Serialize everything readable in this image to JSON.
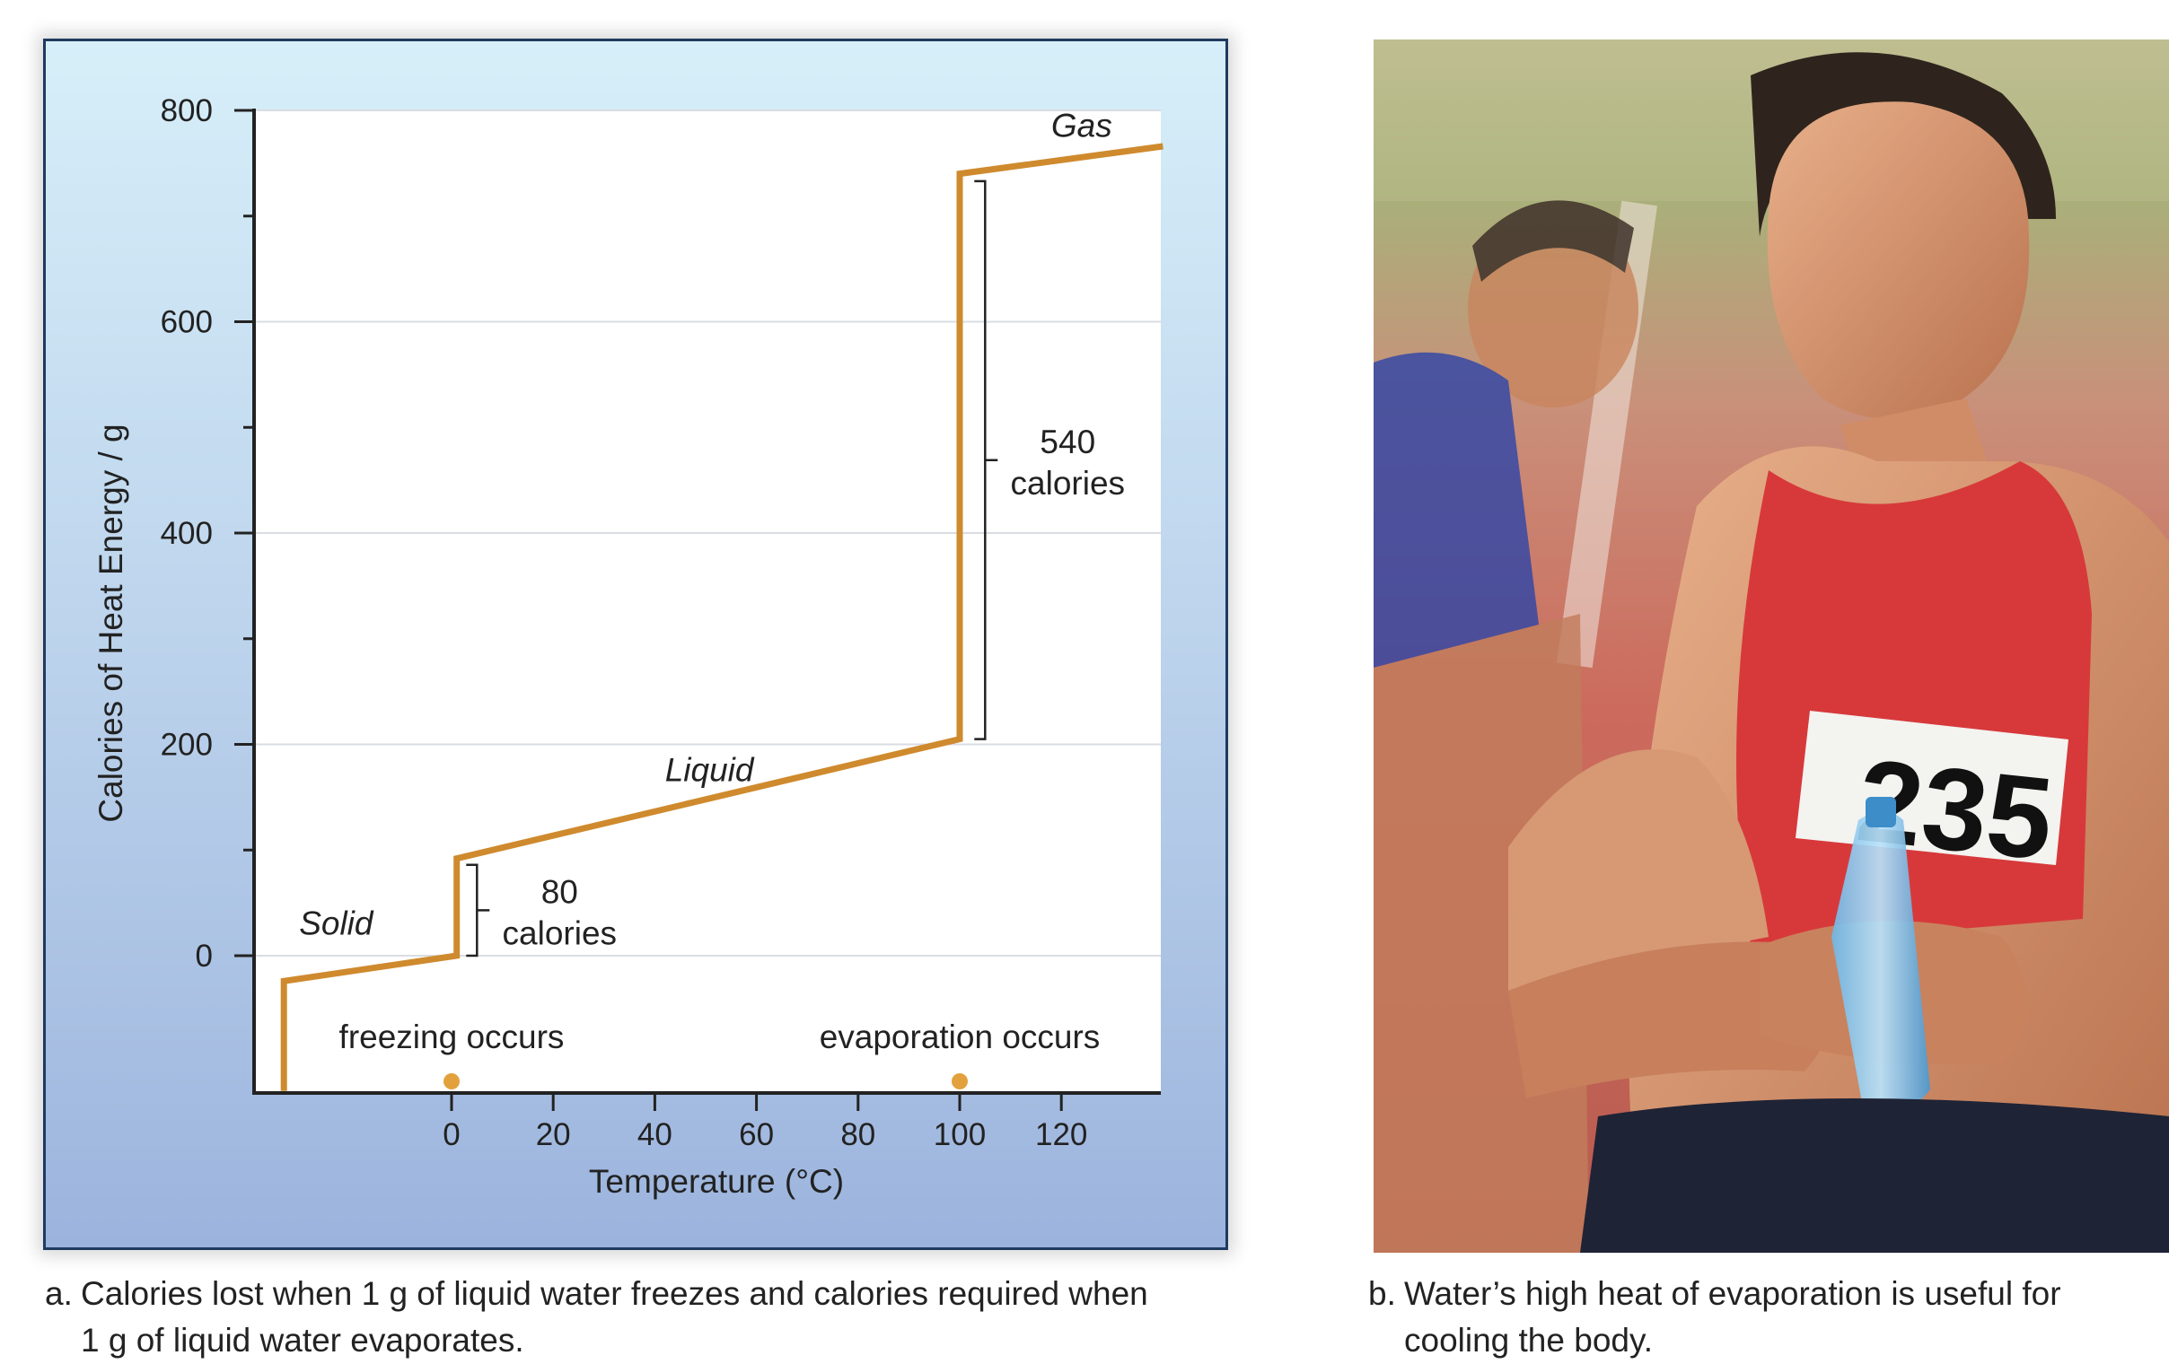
{
  "chart_data": {
    "type": "line",
    "xlabel": "Temperature (°C)",
    "ylabel": "Calories of Heat Energy / g",
    "x_ticks": [
      0,
      20,
      40,
      60,
      80,
      100,
      120
    ],
    "y_ticks": [
      0,
      200,
      400,
      600,
      800
    ],
    "xlim": [
      -38,
      140
    ],
    "ylim": [
      -128,
      800
    ],
    "grid": true,
    "series": [
      {
        "points": [
          {
            "x": -33,
            "y": -128
          },
          {
            "x": -33,
            "y": -24
          },
          {
            "x": 1,
            "y": 0
          },
          {
            "x": 1,
            "y": 92
          },
          {
            "x": 100,
            "y": 205
          },
          {
            "x": 100,
            "y": 740
          },
          {
            "x": 140,
            "y": 766
          }
        ],
        "color": "#cf8a2e"
      }
    ],
    "phase_labels": [
      {
        "text": "Solid",
        "x": -30,
        "y": 20
      },
      {
        "text": "Liquid",
        "x": 42,
        "y": 165
      },
      {
        "text": "Gas",
        "x": 118,
        "y": 775
      }
    ],
    "annotations": [
      {
        "line1": "80",
        "line2": "calories",
        "y_from": 0,
        "y_to": 86,
        "x": 5
      },
      {
        "line1": "540",
        "line2": "calories",
        "y_from": 205,
        "y_to": 733,
        "x": 105
      }
    ],
    "markers": [
      {
        "text": "freezing occurs",
        "x": 0
      },
      {
        "text": "evaporation occurs",
        "x": 100
      }
    ],
    "marker_color": "#e2a13c"
  },
  "captions": {
    "a_lead": "a.",
    "a_text_1": "Calories lost when 1 g of liquid water freezes and calories required when",
    "a_text_2": "1 g of liquid water evaporates.",
    "b_lead": "b.",
    "b_text_1": "Water’s high heat of evaporation is useful for",
    "b_text_2": "cooling the body."
  },
  "photo": {
    "bib_number": "235"
  }
}
